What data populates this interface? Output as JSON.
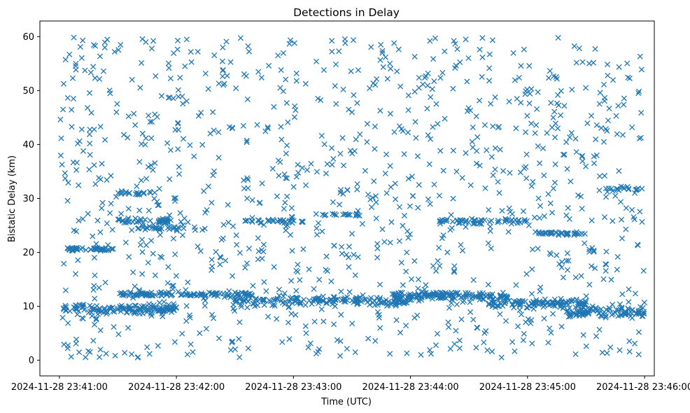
{
  "chart_data": {
    "type": "scatter",
    "title": "Detections in Delay",
    "xlabel": "Time (UTC)",
    "ylabel": "Bistatic Delay (km)",
    "marker": "x",
    "color": "#1f77b4",
    "x_unit": "seconds since 2024-11-28 23:40:00 UTC",
    "xlim": [
      50,
      365
    ],
    "ylim": [
      -2.9,
      62.9
    ],
    "x_ticks": [
      {
        "value": 60,
        "label": "2024-11-28 23:41:00"
      },
      {
        "value": 120,
        "label": "2024-11-28 23:42:00"
      },
      {
        "value": 180,
        "label": "2024-11-28 23:43:00"
      },
      {
        "value": 240,
        "label": "2024-11-28 23:44:00"
      },
      {
        "value": 300,
        "label": "2024-11-28 23:45:00"
      },
      {
        "value": 360,
        "label": "2024-11-28 23:46:00"
      }
    ],
    "y_ticks": [
      {
        "value": 0,
        "label": "0"
      },
      {
        "value": 10,
        "label": "10"
      },
      {
        "value": 20,
        "label": "20"
      },
      {
        "value": 30,
        "label": "30"
      },
      {
        "value": 40,
        "label": "40"
      },
      {
        "value": 50,
        "label": "50"
      },
      {
        "value": 60,
        "label": "60"
      }
    ],
    "x_range_of_data": [
      60,
      360
    ],
    "clusters": [
      {
        "description": "dense band",
        "x_range": [
          62,
          120
        ],
        "y_center": 9.5,
        "y_spread": 0.9,
        "count": 140
      },
      {
        "description": "dense band",
        "x_range": [
          90,
          160
        ],
        "y_center": 12.2,
        "y_spread": 0.5,
        "count": 110
      },
      {
        "description": "dense band",
        "x_range": [
          150,
          240
        ],
        "y_center": 11.0,
        "y_spread": 1.0,
        "count": 170
      },
      {
        "description": "dense band",
        "x_range": [
          230,
          290
        ],
        "y_center": 12.0,
        "y_spread": 0.8,
        "count": 140
      },
      {
        "description": "dense band",
        "x_range": [
          280,
          330
        ],
        "y_center": 10.5,
        "y_spread": 0.8,
        "count": 110
      },
      {
        "description": "dense band",
        "x_range": [
          320,
          360
        ],
        "y_center": 9.0,
        "y_spread": 1.2,
        "count": 100
      },
      {
        "description": "track",
        "x_range": [
          64,
          88
        ],
        "y_center": 20.6,
        "y_spread": 0.3,
        "count": 45
      },
      {
        "description": "track",
        "x_range": [
          90,
          118
        ],
        "y_center": 25.8,
        "y_spread": 0.6,
        "count": 45
      },
      {
        "description": "track",
        "x_range": [
          100,
          125
        ],
        "y_center": 24.5,
        "y_spread": 0.4,
        "count": 30
      },
      {
        "description": "track",
        "x_range": [
          155,
          185
        ],
        "y_center": 25.8,
        "y_spread": 0.4,
        "count": 35
      },
      {
        "description": "track",
        "x_range": [
          255,
          300
        ],
        "y_center": 25.8,
        "y_spread": 0.5,
        "count": 55
      },
      {
        "description": "track",
        "x_range": [
          305,
          330
        ],
        "y_center": 23.5,
        "y_spread": 0.3,
        "count": 35
      },
      {
        "description": "track",
        "x_range": [
          90,
          110
        ],
        "y_center": 31.0,
        "y_spread": 0.3,
        "count": 18
      },
      {
        "description": "track",
        "x_range": [
          340,
          360
        ],
        "y_center": 31.8,
        "y_spread": 0.4,
        "count": 18
      },
      {
        "description": "track",
        "x_range": [
          195,
          215
        ],
        "y_center": 27.0,
        "y_spread": 0.4,
        "count": 18
      },
      {
        "description": "background clutter",
        "x_range": [
          60,
          360
        ],
        "y_range": [
          0.5,
          60
        ],
        "count": 1050
      }
    ]
  }
}
